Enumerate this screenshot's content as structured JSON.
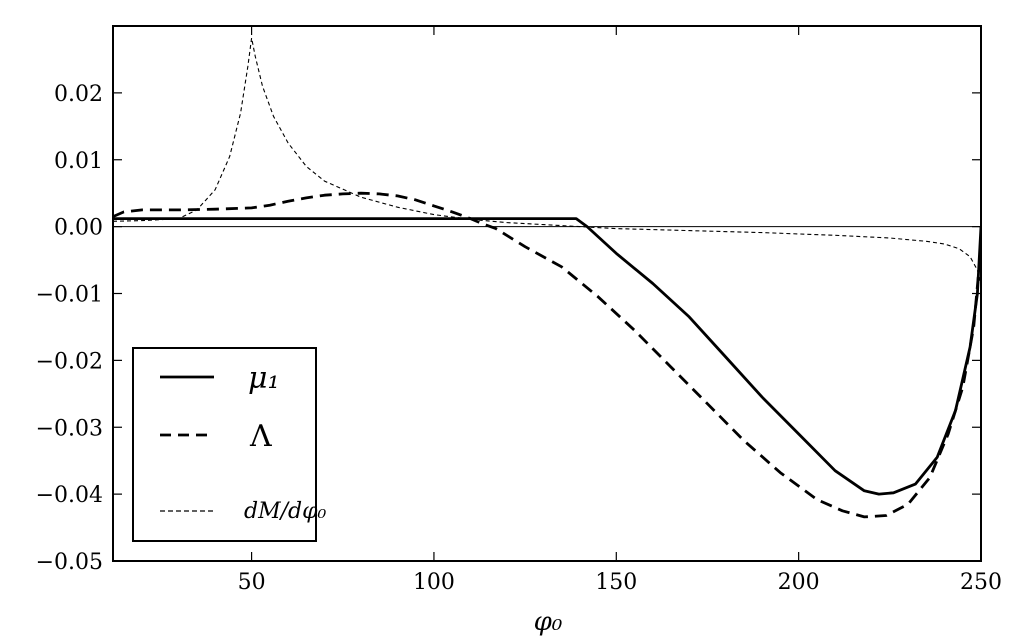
{
  "chart_data": {
    "type": "line",
    "xlabel": "φ₀",
    "ylabel": "",
    "xlim": [
      12,
      250
    ],
    "ylim": [
      -0.05,
      0.03
    ],
    "x_ticks": [
      50,
      100,
      150,
      200,
      250
    ],
    "x_tick_labels": [
      "50",
      "100",
      "150",
      "200",
      "250"
    ],
    "y_ticks": [
      -0.05,
      -0.04,
      -0.03,
      -0.02,
      -0.01,
      0.0,
      0.01,
      0.02
    ],
    "y_tick_labels": [
      "−0.05",
      "−0.04",
      "−0.03",
      "−0.02",
      "−0.01",
      "0.00",
      "0.01",
      "0.02"
    ],
    "grid": false,
    "zero_line": true,
    "legend_position": "lower-left",
    "series": [
      {
        "name": "μ₁",
        "style": "solid-thick",
        "color": "#000000",
        "points": [
          [
            12,
            0.0012
          ],
          [
            20,
            0.0012
          ],
          [
            40,
            0.0012
          ],
          [
            60,
            0.0012
          ],
          [
            80,
            0.0012
          ],
          [
            100,
            0.0012
          ],
          [
            120,
            0.0012
          ],
          [
            139,
            0.0012
          ],
          [
            142,
            0.0
          ],
          [
            150,
            -0.004
          ],
          [
            160,
            -0.0085
          ],
          [
            170,
            -0.0135
          ],
          [
            180,
            -0.0195
          ],
          [
            190,
            -0.0255
          ],
          [
            200,
            -0.031
          ],
          [
            210,
            -0.0365
          ],
          [
            218,
            -0.0395
          ],
          [
            222,
            -0.04
          ],
          [
            226,
            -0.0398
          ],
          [
            232,
            -0.0385
          ],
          [
            238,
            -0.0345
          ],
          [
            243,
            -0.0275
          ],
          [
            247,
            -0.018
          ],
          [
            249,
            -0.01
          ],
          [
            250,
            0.0
          ]
        ]
      },
      {
        "name": "Λ",
        "style": "dashed-thick",
        "color": "#000000",
        "points": [
          [
            12,
            0.0015
          ],
          [
            15,
            0.0022
          ],
          [
            20,
            0.0025
          ],
          [
            30,
            0.0025
          ],
          [
            40,
            0.0026
          ],
          [
            50,
            0.0028
          ],
          [
            55,
            0.0032
          ],
          [
            60,
            0.0038
          ],
          [
            65,
            0.0043
          ],
          [
            70,
            0.0047
          ],
          [
            75,
            0.0049
          ],
          [
            80,
            0.005
          ],
          [
            85,
            0.0049
          ],
          [
            90,
            0.0046
          ],
          [
            95,
            0.004
          ],
          [
            100,
            0.0031
          ],
          [
            105,
            0.0022
          ],
          [
            110,
            0.0012
          ],
          [
            113,
            0.0005
          ],
          [
            117,
            -0.0003
          ],
          [
            125,
            -0.003
          ],
          [
            135,
            -0.006
          ],
          [
            145,
            -0.0105
          ],
          [
            155,
            -0.0155
          ],
          [
            165,
            -0.021
          ],
          [
            175,
            -0.0265
          ],
          [
            185,
            -0.032
          ],
          [
            195,
            -0.0368
          ],
          [
            205,
            -0.0408
          ],
          [
            212,
            -0.0425
          ],
          [
            218,
            -0.0434
          ],
          [
            224,
            -0.0432
          ],
          [
            230,
            -0.0415
          ],
          [
            236,
            -0.0375
          ],
          [
            241,
            -0.031
          ],
          [
            245,
            -0.024
          ],
          [
            248,
            -0.015
          ],
          [
            250,
            -0.003
          ]
        ]
      },
      {
        "name": "dM/dφ₀",
        "style": "dashed-thin",
        "color": "#000000",
        "points": [
          [
            12,
            0.0008
          ],
          [
            20,
            0.0009
          ],
          [
            30,
            0.0012
          ],
          [
            35,
            0.0025
          ],
          [
            40,
            0.0055
          ],
          [
            44,
            0.0105
          ],
          [
            47,
            0.017
          ],
          [
            49,
            0.024
          ],
          [
            50,
            0.0282
          ],
          [
            51,
            0.0255
          ],
          [
            53,
            0.021
          ],
          [
            56,
            0.0165
          ],
          [
            60,
            0.0125
          ],
          [
            65,
            0.009
          ],
          [
            70,
            0.0068
          ],
          [
            80,
            0.0044
          ],
          [
            90,
            0.0029
          ],
          [
            100,
            0.0018
          ],
          [
            110,
            0.0011
          ],
          [
            120,
            0.0006
          ],
          [
            130,
            0.0003
          ],
          [
            140,
            0.0
          ],
          [
            150,
            -0.0003
          ],
          [
            170,
            -0.0006
          ],
          [
            190,
            -0.0009
          ],
          [
            210,
            -0.0013
          ],
          [
            225,
            -0.0017
          ],
          [
            235,
            -0.0022
          ],
          [
            240,
            -0.0026
          ],
          [
            244,
            -0.0033
          ],
          [
            247,
            -0.0045
          ],
          [
            249,
            -0.0065
          ],
          [
            250,
            -0.0085
          ]
        ]
      }
    ]
  }
}
